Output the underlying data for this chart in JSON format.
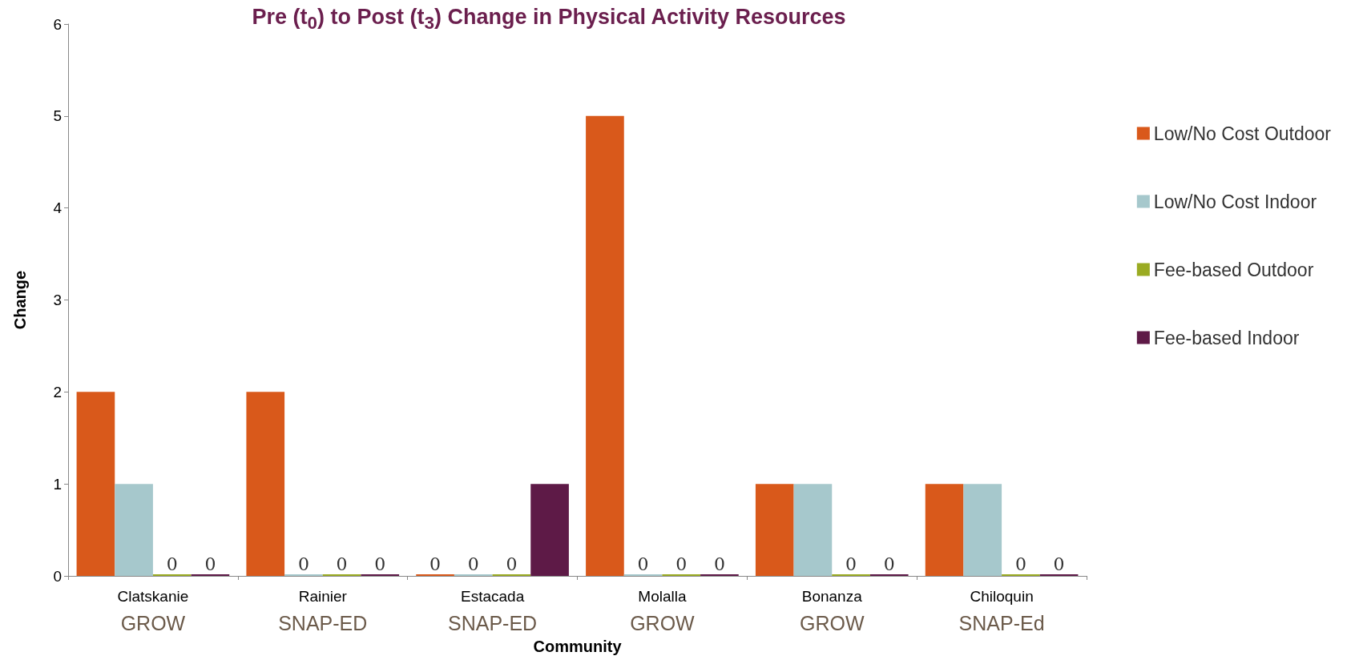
{
  "chart_data": {
    "type": "bar",
    "title": "Pre (t$_{0}$) to Post (t$_{3}$) Change in Physical Activity Resources",
    "xlabel": "Community",
    "ylabel": "Change",
    "categories": [
      "Clatskanie\nGROW",
      "Rainier\nSNAP-ED",
      "Estacada\nSNAP-ED",
      "Molalla\nGROW",
      "Bonanza\nGROW",
      "Chiloquin\nSNAP-Ed"
    ],
    "series": [
      {
        "name": "Low/No Cost Outdoor",
        "color": "#d9591b",
        "values": [
          2,
          2,
          0,
          5,
          1,
          1
        ],
        "value_labels": [
          null,
          null,
          "0",
          null,
          null,
          null
        ]
      },
      {
        "name": "Low/No Cost Indoor",
        "color": "#a6c8cc",
        "values": [
          1,
          0,
          0,
          0,
          1,
          1
        ],
        "value_labels": [
          null,
          "0",
          "0",
          "0",
          null,
          null
        ]
      },
      {
        "name": "Fee-based Outdoor",
        "color": "#9aab22",
        "values": [
          0,
          0,
          0,
          0,
          0,
          0
        ],
        "value_labels": [
          "0",
          "0",
          "0",
          "0",
          "0",
          "0"
        ]
      },
      {
        "name": "Fee-based Indoor",
        "color": "#5e1a47",
        "values": [
          0,
          0,
          1,
          0,
          0,
          0
        ],
        "value_labels": [
          "0",
          "0",
          null,
          "0",
          "0",
          "0"
        ]
      }
    ],
    "ylim": [
      0,
      6
    ],
    "yticks": [
      0,
      1,
      2,
      3,
      4,
      5,
      6
    ],
    "grid": false,
    "legend": "right"
  }
}
